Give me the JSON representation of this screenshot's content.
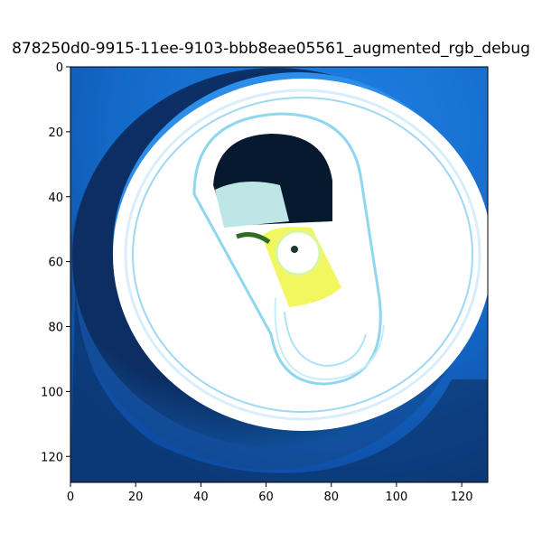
{
  "title": "878250d0-9915-11ee-9103-bbb8eae05561_augmented_rgb_debug",
  "x_axis": {
    "ticks": [
      0,
      20,
      40,
      60,
      80,
      100,
      120
    ],
    "range": [
      0,
      128
    ]
  },
  "y_axis": {
    "ticks": [
      0,
      20,
      40,
      60,
      80,
      100,
      120
    ],
    "range": [
      0,
      128
    ],
    "inverted": true
  },
  "image_content": "can-top-pull-tab-photo"
}
